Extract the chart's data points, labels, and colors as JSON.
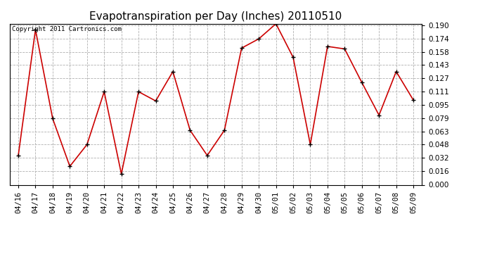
{
  "title": "Evapotranspiration per Day (Inches) 20110510",
  "copyright_text": "Copyright 2011 Cartronics.com",
  "categories": [
    "04/16",
    "04/17",
    "04/18",
    "04/19",
    "04/20",
    "04/21",
    "04/22",
    "04/23",
    "04/24",
    "04/25",
    "04/26",
    "04/27",
    "04/28",
    "04/29",
    "04/30",
    "05/01",
    "05/02",
    "05/03",
    "05/04",
    "05/05",
    "05/06",
    "05/07",
    "05/08",
    "05/09"
  ],
  "values": [
    0.035,
    0.185,
    0.079,
    0.022,
    0.048,
    0.111,
    0.013,
    0.111,
    0.1,
    0.135,
    0.065,
    0.035,
    0.065,
    0.163,
    0.174,
    0.192,
    0.152,
    0.048,
    0.165,
    0.162,
    0.122,
    0.083,
    0.135,
    0.101
  ],
  "ylim": [
    0.0,
    0.192
  ],
  "yticks": [
    0.0,
    0.016,
    0.032,
    0.048,
    0.063,
    0.079,
    0.095,
    0.111,
    0.127,
    0.143,
    0.158,
    0.174,
    0.19
  ],
  "line_color": "#cc0000",
  "marker": "+",
  "marker_color": "#000000",
  "background_color": "#ffffff",
  "grid_color": "#b0b0b0",
  "title_fontsize": 11,
  "copyright_fontsize": 6.5,
  "tick_fontsize": 7.5
}
